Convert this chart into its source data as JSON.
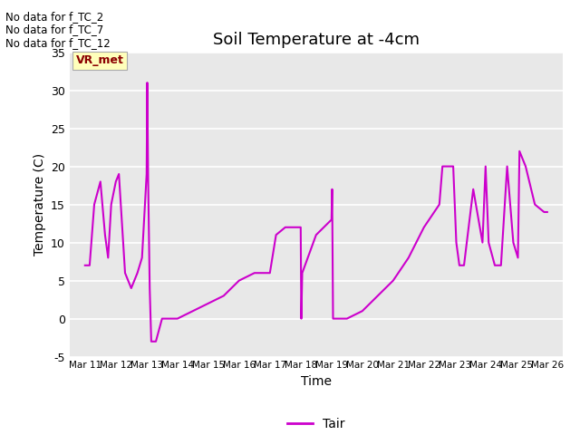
{
  "title": "Soil Temperature at -4cm",
  "xlabel": "Time",
  "ylabel": "Temperature (C)",
  "ylim": [
    -5,
    35
  ],
  "line_color": "#CC00CC",
  "background_color": "#E8E8E8",
  "legend_label": "Tair",
  "annotations": [
    "No data for f_TC_2",
    "No data for f_TC_7",
    "No data for f_TC_12"
  ],
  "vr_met_label": "VR_met",
  "x_tick_labels": [
    "Mar 11",
    "Mar 12",
    "Mar 13",
    "Mar 14",
    "Mar 15",
    "Mar 16",
    "Mar 17",
    "Mar 18",
    "Mar 19",
    "Mar 20",
    "Mar 21",
    "Mar 22",
    "Mar 23",
    "Mar 24",
    "Mar 25",
    "Mar 26"
  ],
  "x_tick_positions": [
    0,
    1,
    2,
    3,
    4,
    5,
    6,
    7,
    8,
    9,
    10,
    11,
    12,
    13,
    14,
    15
  ],
  "yticks": [
    -5,
    0,
    5,
    10,
    15,
    20,
    25,
    30,
    35
  ],
  "data_x": [
    0.0,
    0.15,
    0.3,
    0.5,
    0.65,
    0.75,
    0.85,
    1.0,
    1.1,
    1.3,
    1.5,
    1.7,
    1.85,
    2.0,
    2.02,
    2.05,
    2.1,
    2.15,
    2.2,
    2.3,
    2.5,
    3.0,
    3.5,
    4.0,
    4.5,
    5.0,
    5.5,
    6.0,
    6.2,
    6.5,
    7.0,
    7.02,
    7.05,
    7.5,
    8.0,
    8.02,
    8.05,
    8.5,
    9.0,
    9.5,
    10.0,
    10.5,
    11.0,
    11.5,
    11.6,
    11.8,
    11.95,
    12.05,
    12.15,
    12.3,
    12.6,
    12.9,
    13.0,
    13.1,
    13.3,
    13.5,
    13.7,
    13.9,
    14.05,
    14.1,
    14.3,
    14.6,
    14.9,
    15.0
  ],
  "data_y": [
    7,
    7,
    15,
    18,
    11,
    8,
    15,
    18,
    19,
    6,
    4,
    6,
    8,
    19,
    31,
    18,
    4,
    -3,
    -3,
    -3,
    0,
    0,
    1,
    2,
    3,
    5,
    6,
    6,
    11,
    12,
    12,
    0,
    6,
    11,
    13,
    17,
    0,
    0,
    1,
    3,
    5,
    8,
    12,
    15,
    20,
    20,
    20,
    10,
    7,
    7,
    17,
    10,
    20,
    10,
    7,
    7,
    20,
    10,
    8,
    22,
    20,
    15,
    14,
    14
  ]
}
